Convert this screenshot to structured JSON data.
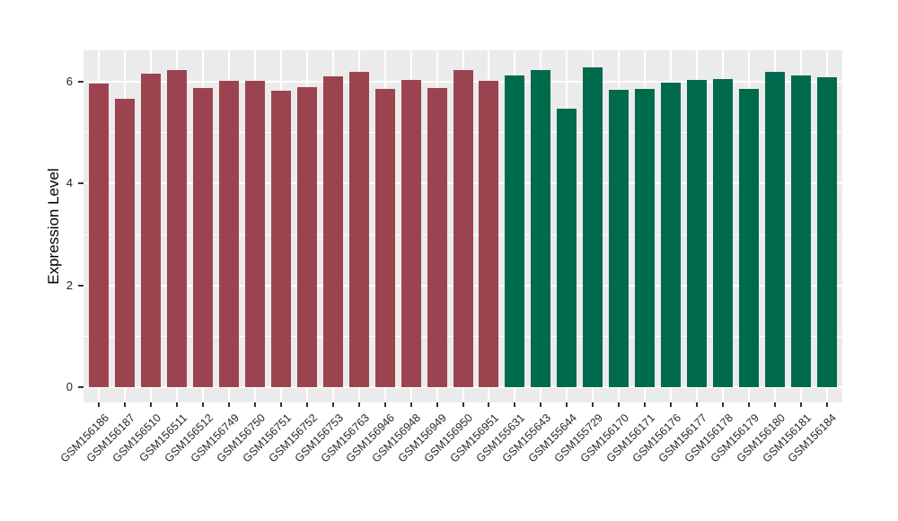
{
  "chart_data": {
    "type": "bar",
    "title": "",
    "xlabel": "",
    "ylabel": "Expression Level",
    "categories": [
      "GSM156186",
      "GSM156187",
      "GSM156510",
      "GSM156511",
      "GSM156512",
      "GSM156749",
      "GSM156750",
      "GSM156751",
      "GSM156752",
      "GSM156753",
      "GSM156763",
      "GSM156946",
      "GSM156948",
      "GSM156949",
      "GSM156950",
      "GSM156951",
      "GSM155631",
      "GSM155643",
      "GSM155644",
      "GSM155729",
      "GSM156170",
      "GSM156171",
      "GSM156176",
      "GSM156177",
      "GSM156178",
      "GSM156179",
      "GSM156180",
      "GSM156181",
      "GSM156184"
    ],
    "values": [
      5.97,
      5.67,
      6.16,
      6.23,
      5.88,
      6.02,
      6.02,
      5.82,
      5.9,
      6.1,
      6.19,
      5.86,
      6.03,
      5.88,
      6.23,
      6.02,
      6.12,
      6.23,
      5.47,
      6.28,
      5.84,
      5.86,
      5.98,
      6.03,
      6.05,
      5.86,
      6.19,
      6.12,
      6.09
    ],
    "bar_groups": [
      0,
      0,
      0,
      0,
      0,
      0,
      0,
      0,
      0,
      0,
      0,
      0,
      0,
      0,
      0,
      0,
      1,
      1,
      1,
      1,
      1,
      1,
      1,
      1,
      1,
      1,
      1,
      1,
      1
    ],
    "group_colors": [
      "#9B4450",
      "#006B4C"
    ],
    "yticks": [
      0,
      2,
      4,
      6
    ],
    "y_minor": [
      1,
      3,
      5
    ],
    "ylim": [
      -0.3,
      6.62
    ],
    "grid": true,
    "legend_position": "none",
    "panel_bg": "#EBEBEB",
    "grid_color": "#FFFFFF",
    "tick_color": "#333333",
    "text_color": "#262626"
  }
}
